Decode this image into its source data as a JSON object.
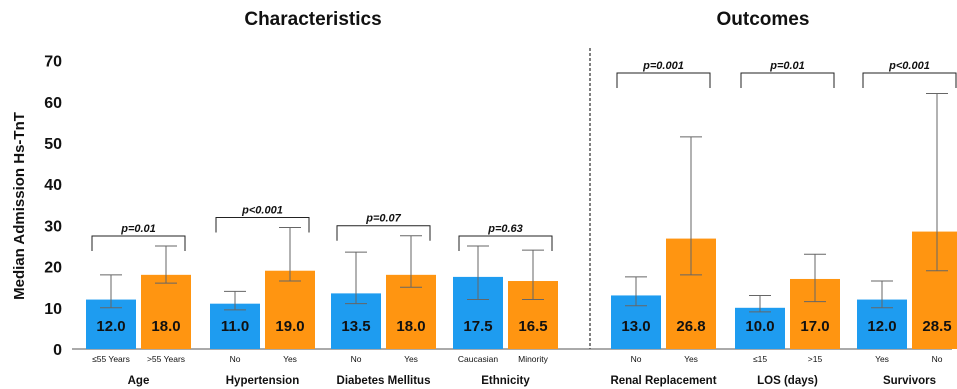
{
  "chart_data": {
    "type": "bar",
    "section_titles": [
      "Characteristics",
      "Outcomes"
    ],
    "ylabel": "Median Admission Hs-TnT",
    "ylim": [
      0,
      70
    ],
    "yticks": [
      0,
      10,
      20,
      30,
      40,
      50,
      60,
      70
    ],
    "colors": {
      "blue": "#1e9cf0",
      "orange": "#ff9511"
    },
    "groups": [
      {
        "label": "Age",
        "section": "Characteristics",
        "p": "p=0.01",
        "bars": [
          {
            "category": "≤55 Years",
            "value": 12.0,
            "label": "12.0",
            "err_low": 10.0,
            "err_high": 18.0,
            "color": "blue"
          },
          {
            "category": ">55 Years",
            "value": 18.0,
            "label": "18.0",
            "err_low": 16.0,
            "err_high": 25.0,
            "color": "orange"
          }
        ]
      },
      {
        "label": "Hypertension",
        "section": "Characteristics",
        "p": "p<0.001",
        "bars": [
          {
            "category": "No",
            "value": 11.0,
            "label": "11.0",
            "err_low": 9.5,
            "err_high": 14.0,
            "color": "blue"
          },
          {
            "category": "Yes",
            "value": 19.0,
            "label": "19.0",
            "err_low": 16.5,
            "err_high": 29.5,
            "color": "orange"
          }
        ]
      },
      {
        "label": "Diabetes Mellitus",
        "section": "Characteristics",
        "p": "p=0.07",
        "bars": [
          {
            "category": "No",
            "value": 13.5,
            "label": "13.5",
            "err_low": 11.0,
            "err_high": 23.5,
            "color": "blue"
          },
          {
            "category": "Yes",
            "value": 18.0,
            "label": "18.0",
            "err_low": 15.0,
            "err_high": 27.5,
            "color": "orange"
          }
        ]
      },
      {
        "label": "Ethnicity",
        "section": "Characteristics",
        "p": "p=0.63",
        "bars": [
          {
            "category": "Caucasian",
            "value": 17.5,
            "label": "17.5",
            "err_low": 12.0,
            "err_high": 25.0,
            "color": "blue"
          },
          {
            "category": "Minority",
            "value": 16.5,
            "label": "16.5",
            "err_low": 12.0,
            "err_high": 24.0,
            "color": "orange"
          }
        ]
      },
      {
        "label": "Renal Replacement",
        "section": "Outcomes",
        "p": "p=0.001",
        "bars": [
          {
            "category": "No",
            "value": 13.0,
            "label": "13.0",
            "err_low": 10.5,
            "err_high": 17.5,
            "color": "blue"
          },
          {
            "category": "Yes",
            "value": 26.8,
            "label": "26.8",
            "err_low": 18.0,
            "err_high": 51.5,
            "color": "orange"
          }
        ]
      },
      {
        "label": "LOS (days)",
        "section": "Outcomes",
        "p": "p=0.01",
        "bars": [
          {
            "category": "≤15",
            "value": 10.0,
            "label": "10.0",
            "err_low": 9.0,
            "err_high": 13.0,
            "color": "blue"
          },
          {
            "category": ">15",
            "value": 17.0,
            "label": "17.0",
            "err_low": 11.5,
            "err_high": 23.0,
            "color": "orange"
          }
        ]
      },
      {
        "label": "Survivors",
        "section": "Outcomes",
        "p": "p<0.001",
        "bars": [
          {
            "category": "Yes",
            "value": 12.0,
            "label": "12.0",
            "err_low": 10.0,
            "err_high": 16.5,
            "color": "blue"
          },
          {
            "category": "No",
            "value": 28.5,
            "label": "28.5",
            "err_low": 19.0,
            "err_high": 62.0,
            "color": "orange"
          }
        ]
      }
    ]
  }
}
